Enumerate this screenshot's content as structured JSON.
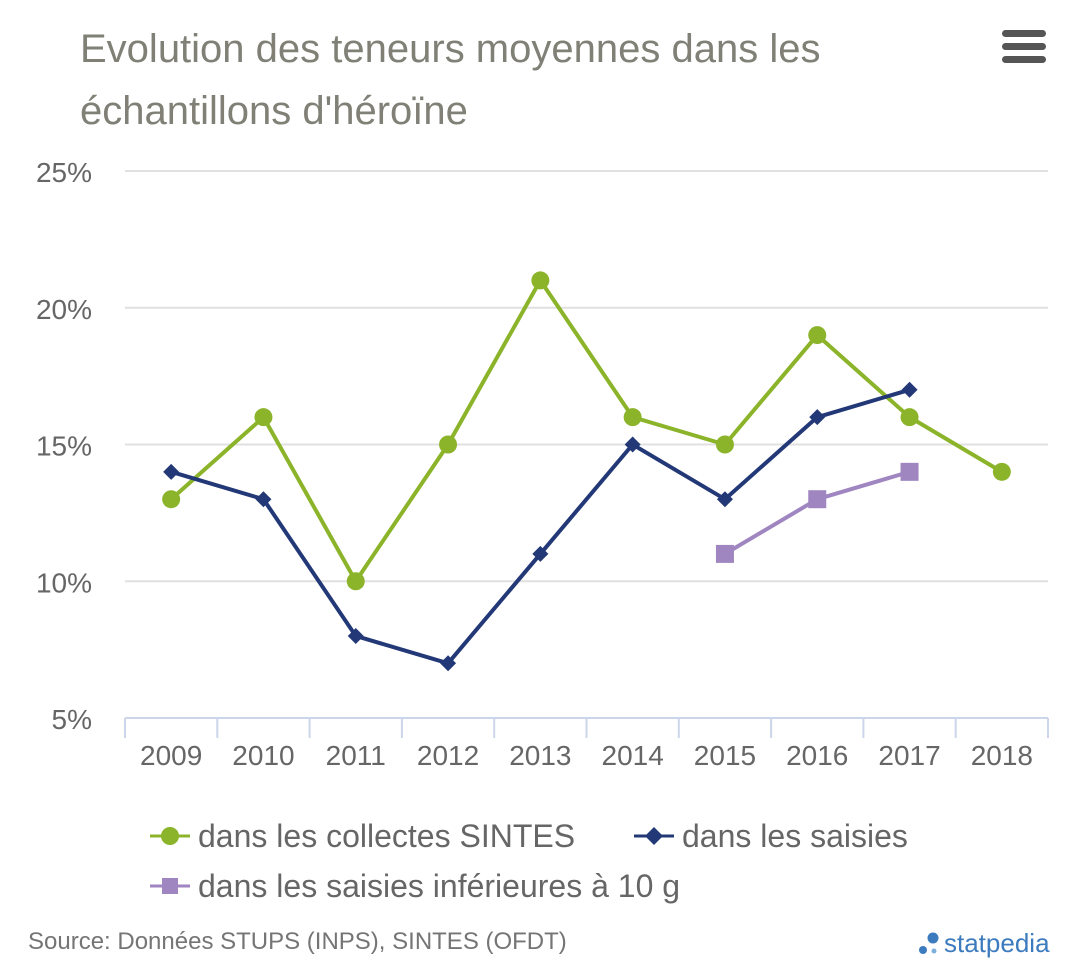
{
  "chart_data": {
    "type": "line",
    "title": "Evolution des teneurs moyennes dans les échantillons d'héroïne",
    "categories": [
      "2009",
      "2010",
      "2011",
      "2012",
      "2013",
      "2014",
      "2015",
      "2016",
      "2017",
      "2018"
    ],
    "ylim": [
      5,
      25
    ],
    "y_ticks": [
      "5%",
      "10%",
      "15%",
      "20%",
      "25%"
    ],
    "y_tick_values": [
      5,
      10,
      15,
      20,
      25
    ],
    "grid": true,
    "legend_position": "bottom",
    "series": [
      {
        "name": "dans les collectes SINTES",
        "color": "#8cb42a",
        "marker": "circle",
        "values": [
          13,
          16,
          10,
          15,
          21,
          16,
          15,
          19,
          16,
          14
        ]
      },
      {
        "name": "dans les saisies",
        "color": "#233877",
        "marker": "diamond",
        "values": [
          14,
          13,
          8,
          7,
          11,
          15,
          13,
          16,
          17,
          null
        ]
      },
      {
        "name": "dans les saisies inférieures à 10 g",
        "color": "#9f86c0",
        "marker": "square",
        "values": [
          null,
          null,
          null,
          null,
          null,
          null,
          11,
          13,
          14,
          null
        ]
      }
    ]
  },
  "menu_icon": "hamburger-menu-icon",
  "source": "Source: Données STUPS (INPS), SINTES (OFDT)",
  "brand": {
    "name": "statpedia",
    "icon": "statpedia-logo-icon",
    "color": "#3d7bbf"
  }
}
